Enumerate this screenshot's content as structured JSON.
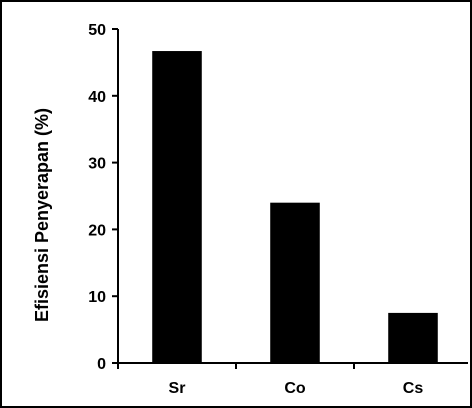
{
  "chart_data": {
    "type": "bar",
    "title": "",
    "xlabel": "",
    "ylabel": "Efisiensi Penyerapan (%)",
    "categories": [
      "Sr",
      "Co",
      "Cs"
    ],
    "values": [
      46.7,
      24.0,
      7.5
    ],
    "ylim": [
      0,
      50
    ],
    "yticks": [
      "0",
      "10",
      "20",
      "30",
      "40",
      "50"
    ],
    "grid": false,
    "legend": "none",
    "colors": {
      "bar": "#000000",
      "axis": "#000000",
      "frame": "#000000",
      "background": "#ffffff"
    }
  }
}
